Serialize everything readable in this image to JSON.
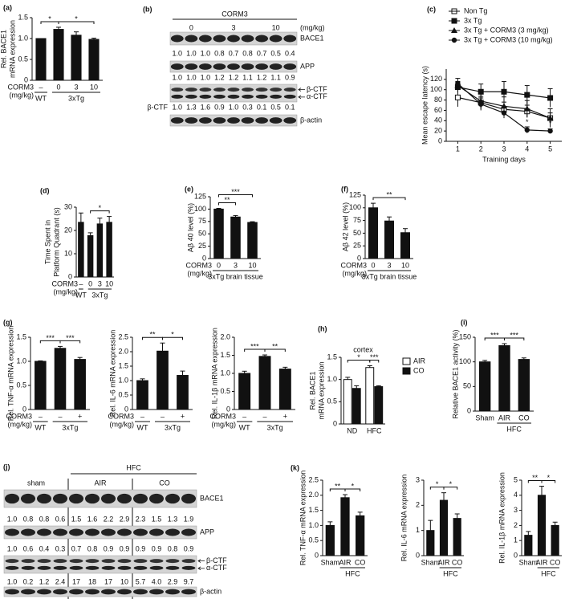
{
  "chart_data": [
    {
      "panel": "(a)",
      "type": "bar",
      "ylabel": [
        "Rel. BACE1",
        "mRNA expression"
      ],
      "categories": [
        "–",
        "0",
        "3",
        "10"
      ],
      "row_label": [
        "CORM3",
        "(mg/kg)"
      ],
      "groups": [
        {
          "label": "WT",
          "from": 0,
          "to": 0
        },
        {
          "label": "3xTg",
          "from": 1,
          "to": 3
        }
      ],
      "values": [
        1.0,
        1.22,
        1.08,
        0.98
      ],
      "errors": [
        0,
        0.05,
        0.08,
        0.03
      ],
      "color": "#111111",
      "ylim": [
        0,
        1.5
      ],
      "yticks": [
        0,
        0.5,
        {
          "value": 1,
          "label": "1.0"
        },
        1.5
      ],
      "significance": [
        {
          "pair": [
            0,
            1
          ],
          "label": "*"
        },
        {
          "pair": [
            1,
            3
          ],
          "label": "*"
        }
      ]
    },
    {
      "panel": "(c)",
      "type": "line",
      "xlabel": "Training days",
      "ylabel": [
        "Mean escape latency (s)"
      ],
      "x": [
        1,
        2,
        3,
        4,
        5
      ],
      "xlim": [
        0.5,
        5.5
      ],
      "xticks": [
        1,
        2,
        3,
        4,
        5
      ],
      "ylim": [
        0,
        140
      ],
      "yticks": [
        0,
        20,
        40,
        60,
        80,
        100,
        120
      ],
      "series": [
        {
          "name": "Non Tg",
          "marker": "square-open",
          "color": "#111111",
          "values": [
            85,
            75,
            62,
            58,
            45
          ],
          "errors": [
            18,
            12,
            14,
            12,
            10
          ]
        },
        {
          "name": "3x Tg",
          "marker": "square",
          "color": "#111111",
          "values": [
            105,
            96,
            96,
            90,
            84
          ],
          "errors": [
            10,
            15,
            20,
            18,
            18
          ]
        },
        {
          "name": "3x Tg + CORM3 (3 mg/kg)",
          "marker": "triangle",
          "color": "#111111",
          "values": [
            108,
            78,
            68,
            63,
            45
          ],
          "errors": [
            8,
            14,
            18,
            16,
            18
          ]
        },
        {
          "name": "3x Tg + CORM3 (10 mg/kg)",
          "marker": "circle",
          "color": "#111111",
          "values": [
            112,
            72,
            55,
            22,
            20
          ],
          "errors": [
            10,
            12,
            10,
            6,
            4
          ],
          "point_labels": [
            null,
            null,
            null,
            "*",
            "*"
          ]
        }
      ]
    },
    {
      "panel": "(d)",
      "type": "bar",
      "ylabel": [
        "Time Spent in",
        "Platform Quadrant (s)"
      ],
      "categories": [
        "–",
        "0",
        "3",
        "10"
      ],
      "row_label": [
        "CORM3",
        "(mg/kg)"
      ],
      "groups": [
        {
          "label": "WT",
          "from": 0,
          "to": 0
        },
        {
          "label": "3xTg",
          "from": 1,
          "to": 3
        }
      ],
      "values": [
        23.5,
        17.8,
        22.8,
        23.5
      ],
      "errors": [
        4,
        1.2,
        2.5,
        2.5
      ],
      "color": "#111111",
      "ylim": [
        0,
        30
      ],
      "yticks": [
        0,
        10,
        20,
        30
      ],
      "significance": [
        {
          "pair": [
            1,
            3
          ],
          "label": "*"
        }
      ]
    },
    {
      "panel": "(e)",
      "type": "bar",
      "ylabel": [
        "Aβ 40 level (%)"
      ],
      "categories": [
        "0",
        "3",
        "10"
      ],
      "row_label": [
        "CORM3",
        "(mg/kg)"
      ],
      "groups": [
        {
          "label": "3xTg brain tissue",
          "from": 0,
          "to": 2
        }
      ],
      "values": [
        100,
        84,
        73
      ],
      "errors": [
        1.5,
        3,
        1.5
      ],
      "color": "#111111",
      "ylim": [
        0,
        125
      ],
      "yticks": [
        0,
        25,
        50,
        75,
        100,
        125
      ],
      "significance": [
        {
          "pair": [
            0,
            1
          ],
          "label": "**"
        },
        {
          "pair": [
            0,
            2
          ],
          "label": "***"
        }
      ]
    },
    {
      "panel": "(f)",
      "type": "bar",
      "ylabel": [
        "Aβ 42 level (%)"
      ],
      "categories": [
        "0",
        "3",
        "10"
      ],
      "row_label": [
        "CORM3",
        "(mg/kg)"
      ],
      "groups": [
        {
          "label": "3xTg brain tissue",
          "from": 0,
          "to": 2
        }
      ],
      "values": [
        100,
        74,
        51
      ],
      "errors": [
        9,
        8,
        8
      ],
      "color": "#111111",
      "ylim": [
        0,
        125
      ],
      "yticks": [
        0,
        25,
        50,
        75,
        100,
        125
      ],
      "significance": [
        {
          "pair": [
            0,
            2
          ],
          "label": "**"
        }
      ]
    },
    {
      "panel": "(g)",
      "type": "bar",
      "ylabel": [
        "Rel. TNF-α mRNA expression"
      ],
      "categories": [
        "–",
        "–",
        "+"
      ],
      "row_label": [
        "CORM3",
        "(mg/kg)"
      ],
      "groups": [
        {
          "label": "WT",
          "from": 0,
          "to": 0
        },
        {
          "label": "3xTg",
          "from": 1,
          "to": 2
        }
      ],
      "values": [
        1.0,
        1.27,
        1.04
      ],
      "errors": [
        0.01,
        0.04,
        0.04
      ],
      "color": "#111111",
      "ylim": [
        0,
        1.5
      ],
      "yticks": [
        0,
        0.5,
        {
          "value": 1,
          "label": "1.0"
        },
        1.5
      ],
      "significance": [
        {
          "pair": [
            0,
            1
          ],
          "label": "***"
        },
        {
          "pair": [
            1,
            2
          ],
          "label": "***"
        }
      ]
    },
    {
      "type": "bar",
      "ylabel": [
        "Rel. IL-6 mRNA expression"
      ],
      "categories": [
        "–",
        "–",
        "+"
      ],
      "row_label": [
        "CORM3",
        "(mg/kg)"
      ],
      "groups": [
        {
          "label": "WT",
          "from": 0,
          "to": 0
        },
        {
          "label": "3xTg",
          "from": 1,
          "to": 2
        }
      ],
      "values": [
        1.0,
        2.02,
        1.18
      ],
      "errors": [
        0.06,
        0.28,
        0.15
      ],
      "color": "#111111",
      "ylim": [
        0,
        2.5
      ],
      "yticks": [
        0,
        0.5,
        {
          "value": 1,
          "label": "1.0"
        },
        1.5,
        {
          "value": 2,
          "label": "2.0"
        },
        2.5
      ],
      "significance": [
        {
          "pair": [
            0,
            1
          ],
          "label": "**"
        },
        {
          "pair": [
            1,
            2
          ],
          "label": "*"
        }
      ]
    },
    {
      "type": "bar",
      "ylabel": [
        "Rel. IL-1β mRNA expression"
      ],
      "categories": [
        "–",
        "–",
        "+"
      ],
      "row_label": [
        "CORM3",
        "(mg/kg)"
      ],
      "groups": [
        {
          "label": "WT",
          "from": 0,
          "to": 0
        },
        {
          "label": "3xTg",
          "from": 1,
          "to": 2
        }
      ],
      "values": [
        1.0,
        1.47,
        1.12
      ],
      "errors": [
        0.06,
        0.04,
        0.05
      ],
      "color": "#111111",
      "ylim": [
        0,
        2
      ],
      "yticks": [
        0,
        0.5,
        {
          "value": 1,
          "label": "1.0"
        },
        1.5,
        {
          "value": 2,
          "label": "2.0"
        }
      ],
      "significance": [
        {
          "pair": [
            0,
            1
          ],
          "label": "***"
        },
        {
          "pair": [
            1,
            2
          ],
          "label": "**"
        }
      ]
    },
    {
      "panel": "(h)",
      "type": "bar",
      "title": "cortex",
      "ylabel": [
        "Rel. BACE1",
        "mRNA expression"
      ],
      "categories": [
        "ND",
        "HFC"
      ],
      "series": [
        {
          "name": "AIR",
          "color": "#ffffff",
          "values": [
            1.0,
            1.27
          ],
          "errors": [
            0.05,
            0.04
          ]
        },
        {
          "name": "CO",
          "color": "#111111",
          "values": [
            0.8,
            0.84
          ],
          "errors": [
            0.06,
            0.02
          ]
        }
      ],
      "ylim": [
        0,
        1.5
      ],
      "yticks": [
        0,
        0.5,
        {
          "value": 1,
          "label": "1.0"
        },
        1.5
      ],
      "significance": [
        {
          "pair": [
            0,
            2
          ],
          "label": "*"
        },
        {
          "pair": [
            2,
            3
          ],
          "label": "***"
        }
      ]
    },
    {
      "panel": "(i)",
      "type": "bar",
      "ylabel": [
        "Relative BACE1 activity (%)"
      ],
      "categories": [
        "Sham",
        "AIR",
        "CO"
      ],
      "groups": [
        {
          "label": "HFC",
          "from": 1,
          "to": 2
        }
      ],
      "values": [
        100,
        133,
        105
      ],
      "errors": [
        3,
        4,
        3
      ],
      "color": "#111111",
      "ylim": [
        0,
        150
      ],
      "yticks": [
        0,
        50,
        100,
        150
      ],
      "significance": [
        {
          "pair": [
            0,
            1
          ],
          "label": "***"
        },
        {
          "pair": [
            1,
            2
          ],
          "label": "***"
        }
      ]
    },
    {
      "panel": "(k)",
      "type": "bar",
      "ylabel": [
        "Rel. TNF-α mRNA expression"
      ],
      "categories": [
        "Sham",
        "AIR",
        "CO"
      ],
      "groups": [
        {
          "label": "HFC",
          "from": 1,
          "to": 2
        }
      ],
      "values": [
        1.0,
        1.92,
        1.32
      ],
      "errors": [
        0.12,
        0.1,
        0.12
      ],
      "color": "#111111",
      "ylim": [
        0,
        2.5
      ],
      "yticks": [
        0,
        0.5,
        {
          "value": 1,
          "label": "1.0"
        },
        1.5,
        {
          "value": 2,
          "label": "2.0"
        },
        2.5
      ],
      "significance": [
        {
          "pair": [
            0,
            1
          ],
          "label": "**"
        },
        {
          "pair": [
            1,
            2
          ],
          "label": "*"
        }
      ]
    },
    {
      "type": "bar",
      "ylabel": [
        "Rel. IL-6 mRNA expression"
      ],
      "categories": [
        "Sham",
        "AIR",
        "CO"
      ],
      "groups": [
        {
          "label": "HFC",
          "from": 1,
          "to": 2
        }
      ],
      "values": [
        1.0,
        2.2,
        1.48
      ],
      "errors": [
        0.4,
        0.3,
        0.18
      ],
      "color": "#111111",
      "ylim": [
        0,
        3
      ],
      "yticks": [
        0,
        1,
        2,
        3
      ],
      "significance": [
        {
          "pair": [
            0,
            1
          ],
          "label": "*"
        },
        {
          "pair": [
            1,
            2
          ],
          "label": "*"
        }
      ]
    },
    {
      "type": "bar",
      "ylabel": [
        "Rel. IL-1β mRNA expression"
      ],
      "categories": [
        "Sham",
        "AIR",
        "CO"
      ],
      "groups": [
        {
          "label": "HFC",
          "from": 1,
          "to": 2
        }
      ],
      "values": [
        1.35,
        4.0,
        2.0
      ],
      "errors": [
        0.25,
        0.6,
        0.22
      ],
      "color": "#111111",
      "ylim": [
        0,
        5
      ],
      "yticks": [
        0,
        1,
        2,
        3,
        4,
        5
      ],
      "significance": [
        {
          "pair": [
            0,
            1
          ],
          "label": "**"
        },
        {
          "pair": [
            1,
            2
          ],
          "label": "*"
        }
      ]
    }
  ],
  "blots": [
    {
      "panel": "(b)",
      "header": "CORM3",
      "unit": "(mg/kg)",
      "lane_groups": [
        "0",
        "3",
        "10"
      ],
      "rows": [
        {
          "labels": [
            "BACE1"
          ],
          "quant": [
            "1.0",
            "1.0",
            "1.0",
            "0.8",
            "0.7",
            "0.8",
            "0.7",
            "0.5",
            "0.4"
          ]
        },
        {
          "labels": [
            "APP"
          ],
          "quant": [
            "1.0",
            "1.0",
            "1.0",
            "1.2",
            "1.2",
            "1.1",
            "1.2",
            "1.1",
            "0.9"
          ]
        },
        {
          "labels": [
            "β-CTF",
            "α-CTF"
          ],
          "quant_label": "β-CTF",
          "quant": [
            "1.0",
            "1.3",
            "1.6",
            "0.9",
            "1.0",
            "0.3",
            "0.1",
            "0.5",
            "0.1"
          ]
        },
        {
          "labels": [
            "β-actin"
          ]
        }
      ]
    },
    {
      "panel": "(j)",
      "header": "HFC",
      "lane_groups": [
        "sham",
        "AIR",
        "CO"
      ],
      "rows": [
        {
          "labels": [
            "BACE1"
          ],
          "quant": [
            "1.0",
            "0.8",
            "0.8",
            "0.6",
            "1.5",
            "1.6",
            "2.2",
            "2.9",
            "2.3",
            "1.5",
            "1.3",
            "1.9"
          ]
        },
        {
          "labels": [
            "APP"
          ],
          "quant": [
            "1.0",
            "0.6",
            "0.4",
            "0.3",
            "0.7",
            "0.8",
            "0.9",
            "0.9",
            "0.9",
            "0.9",
            "0.8",
            "0.9"
          ]
        },
        {
          "labels": [
            "β-CTF",
            "α-CTF"
          ],
          "quant": [
            "1.0",
            "0.2",
            "1.2",
            "2.4",
            "17",
            "18",
            "17",
            "10",
            "5.7",
            "4.0",
            "2.9",
            "9.7"
          ]
        },
        {
          "labels": [
            "β-actin"
          ]
        }
      ]
    }
  ]
}
